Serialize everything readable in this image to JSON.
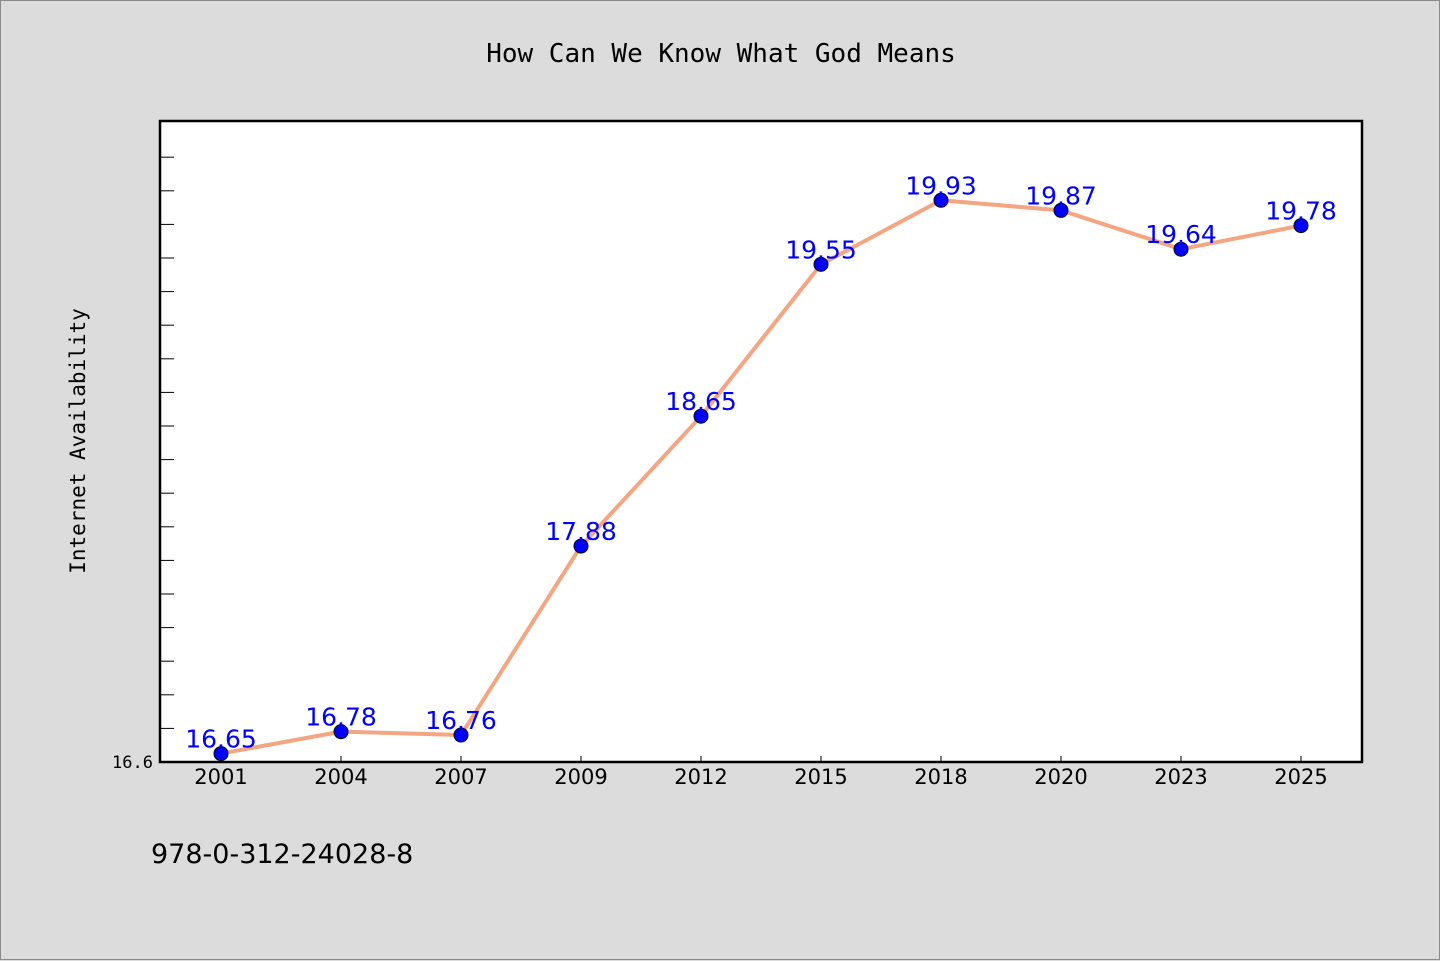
{
  "chart_data": {
    "type": "line",
    "title": "How Can We Know What God Means",
    "xlabel": "",
    "ylabel": "Internet Availability",
    "categories": [
      "2001",
      "2004",
      "2007",
      "2009",
      "2012",
      "2015",
      "2018",
      "2020",
      "2023",
      "2025"
    ],
    "series": [
      {
        "values": [
          16.65,
          16.78,
          16.76,
          17.88,
          18.65,
          19.55,
          19.93,
          19.87,
          19.64,
          19.78
        ]
      }
    ],
    "ylim": [
      16.6,
      20.4
    ],
    "y_tick_labels": [
      "16.6"
    ],
    "grid": false,
    "legend": "none",
    "colors": {
      "line": "#f4a582",
      "marker": "#0000ff",
      "label": "#0000ff",
      "plot_bg": "#ffffff",
      "page_bg": "#dcdcdc"
    }
  },
  "footer": {
    "isbn": "978-0-312-24028-8"
  }
}
